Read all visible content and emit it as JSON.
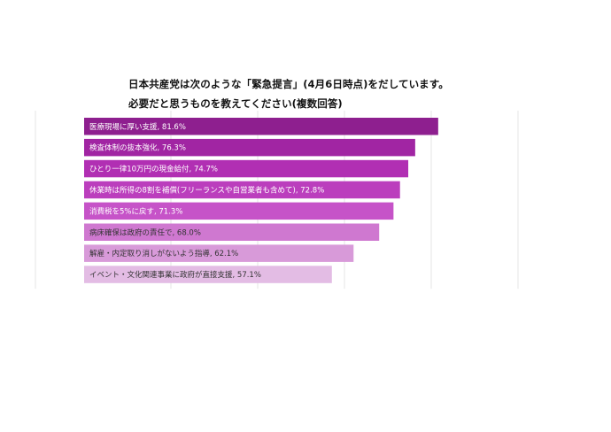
{
  "chart_data": {
    "type": "bar",
    "orientation": "horizontal",
    "title_lines": [
      "日本共産党は次のような「緊急提言」(4月6日時点)をだしています。",
      "必要だと思うものを教えてください(複数回答)"
    ],
    "categories": [
      "医療現場に厚い支援",
      "検査体制の抜本強化",
      "ひとり一律10万円の現金給付",
      "休業時は所得の8割を補償(フリーランスや自営業者も含めて)",
      "消費税を5%に戻す",
      "病床確保は政府の責任で",
      "解雇・内定取り消しがないよう指導",
      "イベント・文化関連事業に政府が直接支援"
    ],
    "values": [
      81.6,
      76.3,
      74.7,
      72.8,
      71.3,
      68.0,
      62.1,
      57.1
    ],
    "labels": [
      "医療現場に厚い支援, 81.6%",
      "検査体制の抜本強化, 76.3%",
      "ひとり一律10万円の現金給付, 74.7%",
      "休業時は所得の8割を補償(フリーランスや自営業者も含めて), 72.8%",
      "消費税を5%に戻す, 71.3%",
      "病床確保は政府の責任で, 68.0%",
      "解雇・内定取り消しがないよう指導, 62.1%",
      "イベント・文化関連事業に政府が直接支援, 57.1%"
    ],
    "colors": [
      "#8e1f8f",
      "#a125a3",
      "#b12fb3",
      "#bb3ebd",
      "#c653c8",
      "#cf78d0",
      "#d89ad9",
      "#e3bce4"
    ],
    "label_colors": [
      "#ffffff",
      "#ffffff",
      "#ffffff",
      "#ffffff",
      "#ffffff",
      "#333333",
      "#333333",
      "#333333"
    ],
    "xlim": [
      0,
      100
    ],
    "grid": true,
    "legend": "none"
  }
}
